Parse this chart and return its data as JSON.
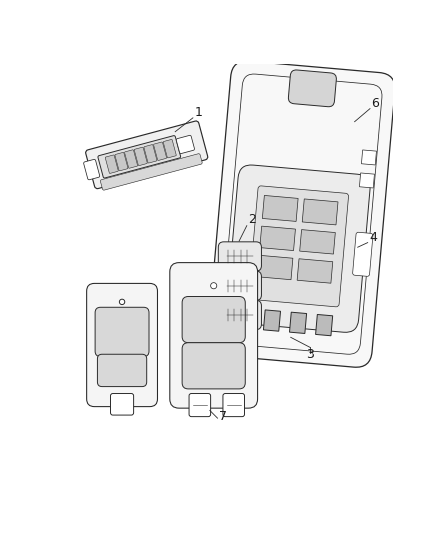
{
  "background_color": "#ffffff",
  "line_color": "#2a2a2a",
  "label_color": "#1a1a1a",
  "fig_width": 4.38,
  "fig_height": 5.33,
  "dpi": 100,
  "label_fontsize": 9,
  "line_width": 0.7
}
